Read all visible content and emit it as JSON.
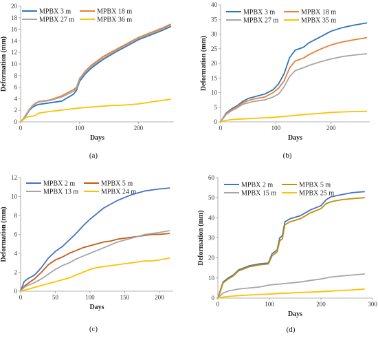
{
  "chart_data": [
    {
      "type": "line",
      "caption": "(a)",
      "xlabel": "Days",
      "ylabel": "Deformation (mm)",
      "xlim": [
        0,
        260
      ],
      "ylim": [
        0,
        20
      ],
      "xticks": [
        0,
        100,
        200
      ],
      "yticks": [
        0,
        2,
        4,
        6,
        8,
        10,
        12,
        14,
        16,
        18,
        20
      ],
      "legend_position": "top-left",
      "grid": false,
      "series": [
        {
          "name": "MPBX 3 m",
          "color": "#2e75b6",
          "x": [
            0,
            5,
            10,
            15,
            20,
            25,
            30,
            50,
            70,
            90,
            95,
            100,
            110,
            120,
            140,
            160,
            180,
            200,
            220,
            240,
            255
          ],
          "y": [
            0,
            0.5,
            1.2,
            2.0,
            2.5,
            2.8,
            3.0,
            3.3,
            3.6,
            4.8,
            5.5,
            7.0,
            8.3,
            9.3,
            10.8,
            12.0,
            13.1,
            14.2,
            15.0,
            15.8,
            16.5
          ]
        },
        {
          "name": "MPBX 18 m",
          "color": "#ed7d31",
          "x": [
            0,
            5,
            10,
            15,
            20,
            25,
            30,
            50,
            70,
            90,
            95,
            100,
            110,
            120,
            140,
            160,
            180,
            200,
            220,
            240,
            255
          ],
          "y": [
            0,
            0.6,
            1.4,
            2.2,
            2.8,
            3.2,
            3.5,
            3.8,
            4.5,
            5.6,
            6.0,
            7.5,
            8.8,
            9.8,
            11.3,
            12.4,
            13.5,
            14.6,
            15.4,
            16.2,
            16.9
          ]
        },
        {
          "name": "MPBX 27 m",
          "color": "#a5a5a5",
          "x": [
            0,
            5,
            10,
            15,
            20,
            25,
            30,
            50,
            70,
            90,
            95,
            100,
            110,
            120,
            140,
            160,
            180,
            200,
            220,
            240,
            255
          ],
          "y": [
            0,
            0.55,
            1.3,
            2.1,
            2.7,
            3.1,
            3.4,
            3.7,
            4.3,
            5.3,
            5.8,
            7.3,
            8.6,
            9.6,
            11.0,
            12.2,
            13.3,
            14.4,
            15.2,
            16.0,
            16.7
          ]
        },
        {
          "name": "MPBX 36 m",
          "color": "#ffc000",
          "x": [
            0,
            5,
            10,
            20,
            25,
            30,
            50,
            75,
            100,
            125,
            150,
            175,
            200,
            225,
            255
          ],
          "y": [
            0,
            0.4,
            0.8,
            1.0,
            1.1,
            1.5,
            1.8,
            2.1,
            2.4,
            2.6,
            2.8,
            2.9,
            3.1,
            3.5,
            3.9
          ]
        }
      ]
    },
    {
      "type": "line",
      "caption": "(b)",
      "xlabel": "Days",
      "ylabel": "Deformation (mm)",
      "xlim": [
        0,
        270
      ],
      "ylim": [
        0,
        40
      ],
      "xticks": [
        0,
        100,
        200
      ],
      "yticks": [
        0,
        5,
        10,
        15,
        20,
        25,
        30,
        35,
        40
      ],
      "legend_position": "top-left",
      "grid": false,
      "series": [
        {
          "name": "MPBX 3 m",
          "color": "#2e75b6",
          "x": [
            0,
            10,
            20,
            30,
            40,
            50,
            60,
            80,
            95,
            105,
            115,
            125,
            135,
            150,
            160,
            180,
            200,
            220,
            240,
            265
          ],
          "y": [
            0,
            3.0,
            4.5,
            5.5,
            7.0,
            8.0,
            8.5,
            9.5,
            11.0,
            13.0,
            16.5,
            22.0,
            24.5,
            25.5,
            27.0,
            29.0,
            31.0,
            32.2,
            33.0,
            33.8
          ]
        },
        {
          "name": "MPBX 18 m",
          "color": "#ed7d31",
          "x": [
            0,
            10,
            20,
            30,
            40,
            50,
            60,
            80,
            95,
            105,
            115,
            125,
            135,
            150,
            160,
            180,
            200,
            220,
            240,
            265
          ],
          "y": [
            0,
            2.8,
            4.2,
            5.2,
            6.5,
            7.3,
            7.8,
            8.5,
            10.0,
            11.5,
            14.0,
            18.5,
            20.8,
            21.8,
            23.0,
            24.8,
            26.3,
            27.3,
            28.0,
            28.8
          ]
        },
        {
          "name": "MPBX 27 m",
          "color": "#a5a5a5",
          "x": [
            0,
            10,
            20,
            30,
            40,
            50,
            60,
            80,
            95,
            105,
            115,
            125,
            135,
            150,
            160,
            180,
            200,
            220,
            240,
            265
          ],
          "y": [
            0,
            2.5,
            3.8,
            4.8,
            6.0,
            6.5,
            7.0,
            7.5,
            8.5,
            9.5,
            12.0,
            15.5,
            17.5,
            18.5,
            19.3,
            20.5,
            21.5,
            22.3,
            22.8,
            23.3
          ]
        },
        {
          "name": "MPBX 35 m",
          "color": "#ffc000",
          "x": [
            0,
            10,
            20,
            40,
            60,
            80,
            100,
            120,
            140,
            160,
            180,
            200,
            220,
            240,
            265
          ],
          "y": [
            0,
            0.5,
            0.8,
            1.0,
            1.2,
            1.4,
            1.6,
            1.9,
            2.3,
            2.6,
            2.9,
            3.2,
            3.4,
            3.5,
            3.6
          ]
        }
      ]
    },
    {
      "type": "line",
      "caption": "(c)",
      "xlabel": "Days",
      "ylabel": "Deformation (mm)",
      "xlim": [
        0,
        220
      ],
      "ylim": [
        0,
        12
      ],
      "xticks": [
        0,
        50,
        100,
        150,
        200
      ],
      "yticks": [
        0,
        2,
        4,
        6,
        8,
        10,
        12
      ],
      "legend_position": "top-left",
      "grid": false,
      "series": [
        {
          "name": "MPBX 2 m",
          "color": "#4472c4",
          "x": [
            0,
            5,
            10,
            20,
            30,
            40,
            50,
            60,
            70,
            80,
            90,
            100,
            110,
            120,
            130,
            140,
            150,
            160,
            170,
            180,
            190,
            200,
            215
          ],
          "y": [
            0,
            1.0,
            1.3,
            1.7,
            2.5,
            3.5,
            4.2,
            4.7,
            5.4,
            6.1,
            6.9,
            7.6,
            8.2,
            8.8,
            9.2,
            9.6,
            9.9,
            10.2,
            10.4,
            10.6,
            10.7,
            10.8,
            10.9
          ]
        },
        {
          "name": "MPBX 5 m",
          "color": "#c55a11",
          "x": [
            0,
            5,
            10,
            20,
            30,
            40,
            50,
            60,
            70,
            80,
            90,
            100,
            110,
            120,
            130,
            140,
            150,
            160,
            170,
            180,
            190,
            200,
            215
          ],
          "y": [
            0,
            0.5,
            0.8,
            1.3,
            2.0,
            2.8,
            3.3,
            3.6,
            4.0,
            4.3,
            4.6,
            4.8,
            5.0,
            5.2,
            5.3,
            5.5,
            5.6,
            5.7,
            5.8,
            5.9,
            6.0,
            6.0,
            6.1
          ]
        },
        {
          "name": "MPBX 13 m",
          "color": "#a5a5a5",
          "x": [
            0,
            5,
            10,
            20,
            30,
            40,
            50,
            60,
            70,
            80,
            90,
            100,
            110,
            120,
            130,
            140,
            150,
            160,
            170,
            180,
            190,
            200,
            215
          ],
          "y": [
            0,
            0.4,
            0.6,
            0.9,
            1.3,
            1.8,
            2.3,
            2.7,
            3.0,
            3.4,
            3.7,
            4.0,
            4.3,
            4.6,
            4.9,
            5.2,
            5.4,
            5.6,
            5.8,
            6.0,
            6.1,
            6.2,
            6.4
          ]
        },
        {
          "name": "MPBX 24 m",
          "color": "#ffc000",
          "x": [
            0,
            10,
            20,
            30,
            40,
            50,
            60,
            70,
            80,
            90,
            100,
            110,
            120,
            130,
            140,
            150,
            160,
            170,
            180,
            190,
            200,
            215
          ],
          "y": [
            0,
            0.2,
            0.4,
            0.6,
            0.8,
            1.0,
            1.2,
            1.4,
            1.7,
            2.0,
            2.3,
            2.5,
            2.6,
            2.7,
            2.8,
            2.9,
            3.0,
            3.1,
            3.2,
            3.2,
            3.3,
            3.5
          ]
        }
      ]
    },
    {
      "type": "line",
      "caption": "(d)",
      "xlabel": "Days",
      "ylabel": "Deformation (mm)",
      "xlim": [
        0,
        300
      ],
      "ylim": [
        0,
        60
      ],
      "xticks": [
        0,
        100,
        200,
        300
      ],
      "yticks": [
        0,
        10,
        20,
        30,
        40,
        50,
        60
      ],
      "legend_position": "top-left",
      "grid": false,
      "series": [
        {
          "name": "MPBX 2 m",
          "color": "#4472c4",
          "x": [
            0,
            5,
            10,
            20,
            30,
            40,
            60,
            80,
            98,
            105,
            115,
            120,
            125,
            130,
            140,
            160,
            180,
            200,
            210,
            220,
            230,
            240,
            260,
            285
          ],
          "y": [
            0,
            4.0,
            8.0,
            10.0,
            11.5,
            14.0,
            16.0,
            17.0,
            17.5,
            22.0,
            24.0,
            30.0,
            31.0,
            38.0,
            39.5,
            41.0,
            44.0,
            46.0,
            49.0,
            50.5,
            51.0,
            51.5,
            52.5,
            53.0
          ]
        },
        {
          "name": "MPBX 5 m",
          "color": "#bf9000",
          "x": [
            0,
            5,
            10,
            20,
            30,
            40,
            60,
            80,
            98,
            105,
            115,
            120,
            125,
            130,
            140,
            160,
            180,
            200,
            210,
            220,
            230,
            240,
            260,
            285
          ],
          "y": [
            0,
            3.5,
            7.5,
            9.5,
            11.0,
            13.5,
            15.5,
            16.5,
            17.0,
            21.0,
            23.0,
            28.5,
            29.5,
            36.5,
            38.0,
            39.5,
            42.5,
            44.5,
            47.0,
            48.0,
            48.5,
            49.0,
            49.5,
            50.0
          ]
        },
        {
          "name": "MPBX 15 m",
          "color": "#a5a5a5",
          "x": [
            0,
            10,
            20,
            40,
            60,
            80,
            100,
            120,
            140,
            160,
            180,
            200,
            220,
            240,
            260,
            285
          ],
          "y": [
            0,
            2.5,
            3.5,
            4.5,
            5.0,
            5.5,
            6.5,
            7.0,
            7.5,
            8.0,
            8.8,
            9.5,
            10.5,
            11.0,
            11.5,
            12.0
          ]
        },
        {
          "name": "MPBX 25 m",
          "color": "#ffc000",
          "x": [
            0,
            10,
            20,
            40,
            60,
            80,
            100,
            120,
            140,
            160,
            180,
            200,
            220,
            240,
            260,
            285
          ],
          "y": [
            0,
            0.5,
            0.8,
            1.2,
            1.5,
            1.8,
            2.0,
            2.3,
            2.5,
            2.8,
            3.0,
            3.2,
            3.5,
            3.8,
            4.0,
            4.5
          ]
        }
      ]
    }
  ]
}
